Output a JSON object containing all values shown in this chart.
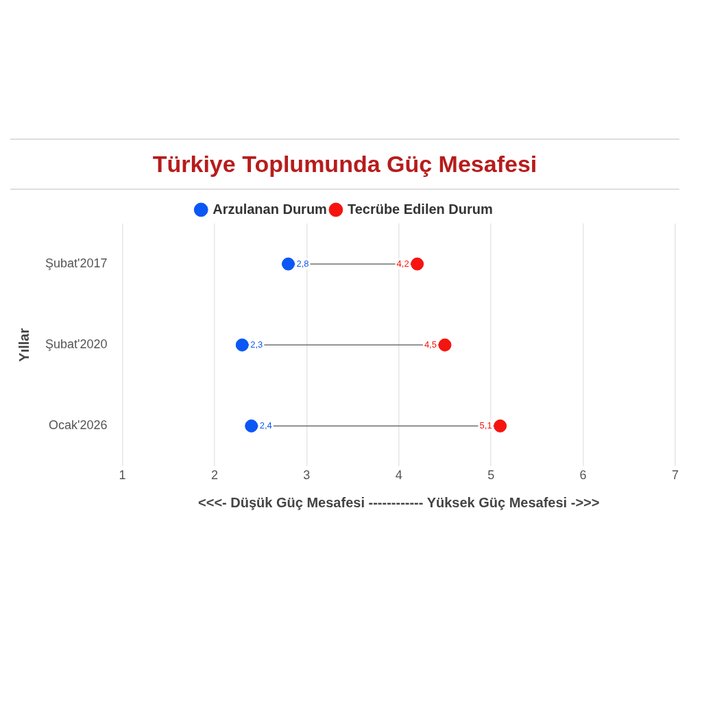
{
  "chart_data": {
    "type": "scatter",
    "orientation": "horizontal",
    "title": "Türkiye Toplumunda Güç Mesafesi",
    "xlabel": "<<<- Düşük Güç Mesafesi ------------ Yüksek Güç Mesafesi ->>>",
    "ylabel": "Yıllar",
    "categories": [
      "Şubat'2017",
      "Şubat'2020",
      "Ocak'2026"
    ],
    "xlim": [
      1,
      7
    ],
    "xticks": [
      1,
      2,
      3,
      4,
      5,
      6,
      7
    ],
    "grid": "x",
    "legend": "top",
    "marker": "circle",
    "series": [
      {
        "name": "Arzulanan Durum",
        "color": "#0a57f5",
        "values": [
          2.8,
          2.3,
          2.4
        ],
        "value_labels": [
          "2,8",
          "2,3",
          "2,4"
        ]
      },
      {
        "name": "Tecrübe Edilen Durum",
        "color": "#f5140f",
        "values": [
          4.2,
          4.5,
          5.1
        ],
        "value_labels": [
          "4,2",
          "4,5",
          "5,1"
        ]
      }
    ]
  }
}
